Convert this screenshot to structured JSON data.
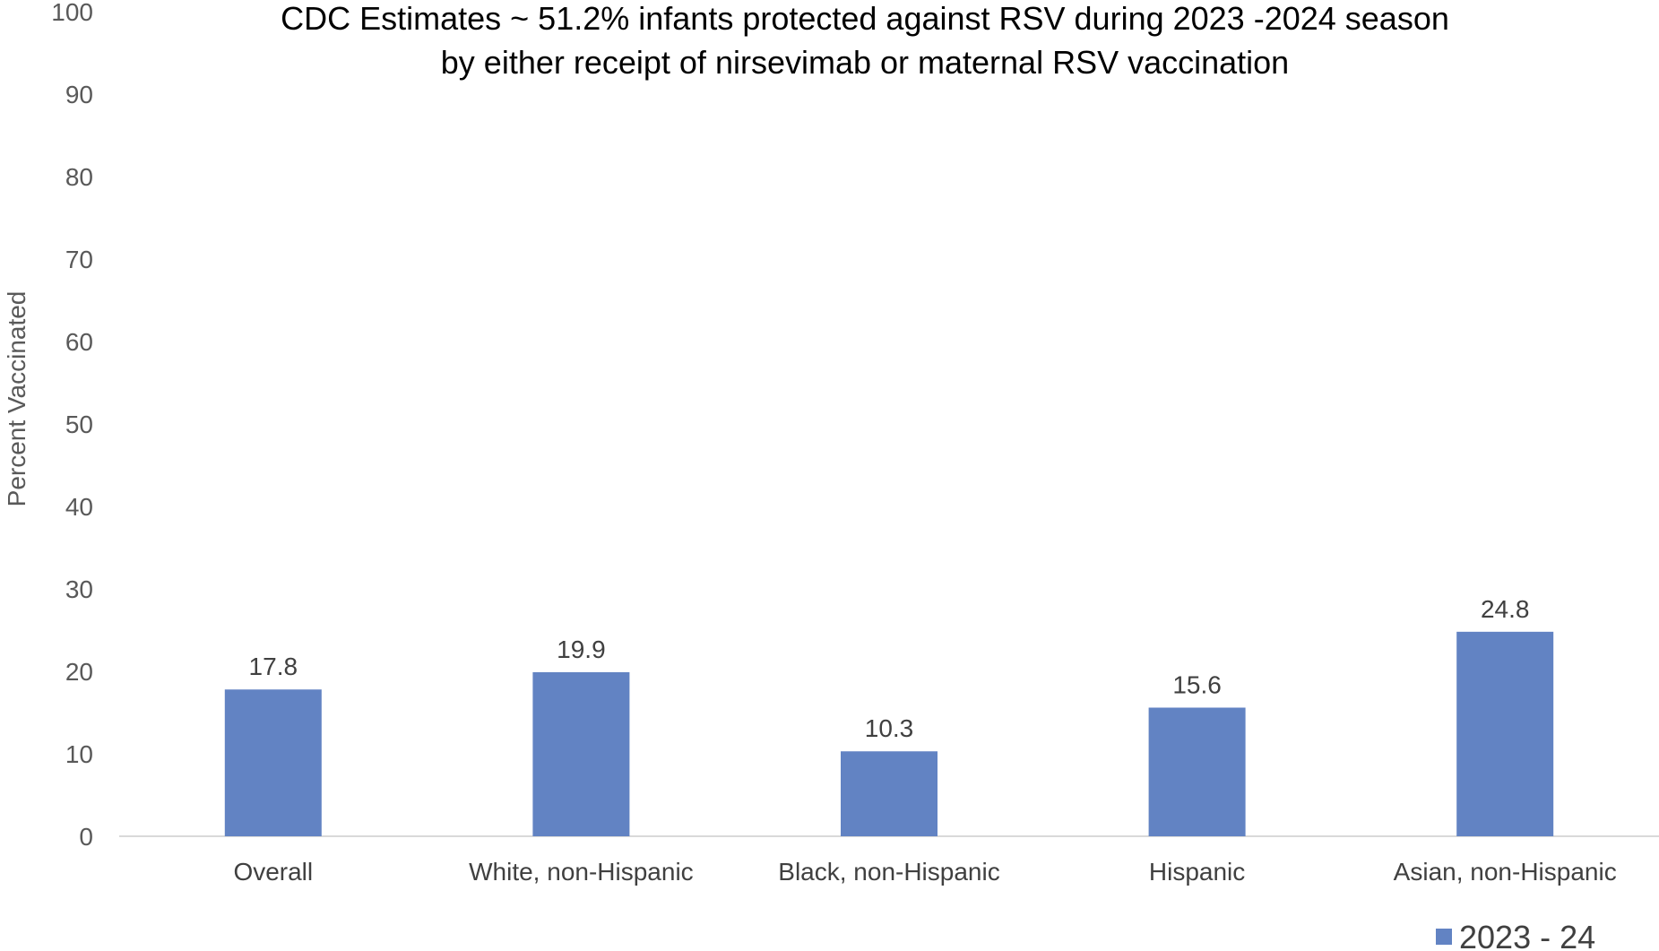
{
  "chart_data": {
    "type": "bar",
    "title": "CDC Estimates ~ 51.2% infants protected against RSV during 2023 -2024 season",
    "subtitle": "by either receipt of nirsevimab or maternal RSV vaccination",
    "xlabel": "",
    "ylabel": "Percent Vaccinated",
    "ylim": [
      0,
      100
    ],
    "yticks": [
      0,
      10,
      20,
      30,
      40,
      50,
      60,
      70,
      80,
      90,
      100
    ],
    "grid": false,
    "legend_position": "bottom-right",
    "categories": [
      "Overall",
      "White, non-Hispanic",
      "Black, non-Hispanic",
      "Hispanic",
      "Asian, non-Hispanic"
    ],
    "series": [
      {
        "name": "2023 - 24",
        "color": "#6283C3",
        "values": [
          17.8,
          19.9,
          10.3,
          15.6,
          24.8
        ],
        "data_labels": [
          "17.8",
          "19.9",
          "10.3",
          "15.6",
          "24.8"
        ]
      }
    ]
  }
}
